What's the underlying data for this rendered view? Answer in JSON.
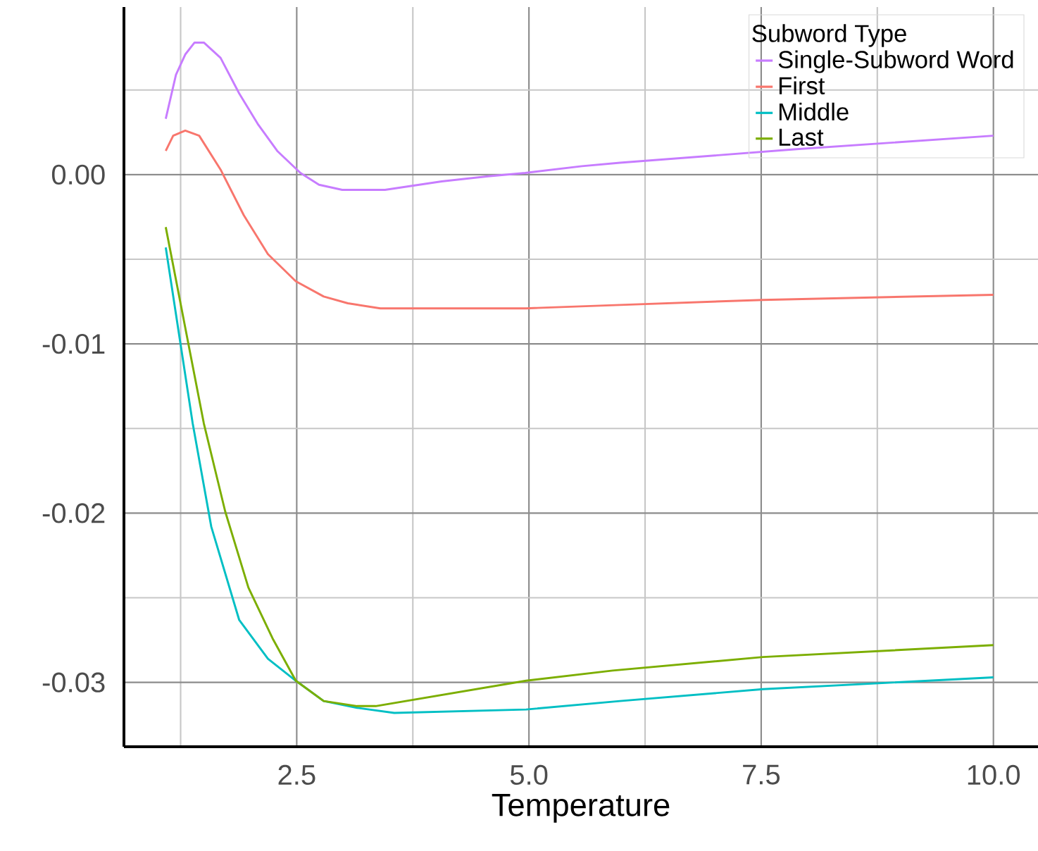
{
  "chart_data": {
    "type": "line",
    "xlabel": "Temperature",
    "legend_title": "Subword Type",
    "legend": "top right",
    "grid": true,
    "xlim": [
      0.64,
      10.48
    ],
    "ylim": [
      -0.0338,
      0.0099
    ],
    "xticks": [
      {
        "value": 2.5,
        "label": "2.5"
      },
      {
        "value": 5,
        "label": "5.0"
      },
      {
        "value": 7.5,
        "label": "7.5"
      },
      {
        "value": 10,
        "label": "10.0"
      }
    ],
    "yticks": [
      {
        "value": -0.03,
        "label": "-0.03"
      },
      {
        "value": -0.02,
        "label": "-0.02"
      },
      {
        "value": -0.01,
        "label": "-0.01"
      },
      {
        "value": 0,
        "label": "0.00"
      }
    ],
    "series": [
      {
        "name": "Single-Subword Word",
        "color": "#c77cff",
        "x": [
          1.09,
          1.2,
          1.3,
          1.4,
          1.5,
          1.68,
          1.88,
          2.08,
          2.29,
          2.54,
          2.74,
          2.99,
          3.45,
          4.06,
          4.56,
          4.96,
          5.57,
          5.98,
          7.88,
          10.0
        ],
        "values": [
          0.0033,
          0.0059,
          0.0071,
          0.0078,
          0.0078,
          0.0069,
          0.0048,
          0.003,
          0.0014,
          0.0001,
          -0.0006,
          -0.0009,
          -0.0009,
          -0.0004,
          -0.0001,
          0.0001,
          0.0005,
          0.0007,
          0.0015,
          0.0023
        ]
      },
      {
        "name": "First",
        "color": "#f8766d",
        "x": [
          1.09,
          1.17,
          1.3,
          1.45,
          1.68,
          1.93,
          2.19,
          2.49,
          2.79,
          3.05,
          3.4,
          4.97,
          5.98,
          7.52,
          10.0
        ],
        "values": [
          0.0014,
          0.0023,
          0.0026,
          0.0023,
          0.0003,
          -0.0024,
          -0.0047,
          -0.0063,
          -0.0072,
          -0.0076,
          -0.0079,
          -0.0079,
          -0.0077,
          -0.0074,
          -0.0071
        ]
      },
      {
        "name": "Middle",
        "color": "#00bfc4",
        "x": [
          1.09,
          1.38,
          1.58,
          1.88,
          2.19,
          2.49,
          2.79,
          3.15,
          3.55,
          4.97,
          5.98,
          7.52,
          10.0
        ],
        "values": [
          -0.0043,
          -0.0147,
          -0.0208,
          -0.0263,
          -0.0286,
          -0.0299,
          -0.0311,
          -0.0315,
          -0.0318,
          -0.0316,
          -0.0311,
          -0.0304,
          -0.0297
        ]
      },
      {
        "name": "Last",
        "color": "#7cae00",
        "x": [
          1.09,
          1.5,
          1.73,
          1.98,
          2.24,
          2.49,
          2.79,
          3.15,
          3.35,
          4.97,
          5.9,
          7.52,
          10.0
        ],
        "values": [
          -0.0031,
          -0.0147,
          -0.0199,
          -0.0244,
          -0.0274,
          -0.0299,
          -0.0311,
          -0.0314,
          -0.0314,
          -0.0299,
          -0.0293,
          -0.0285,
          -0.0278
        ]
      }
    ]
  }
}
